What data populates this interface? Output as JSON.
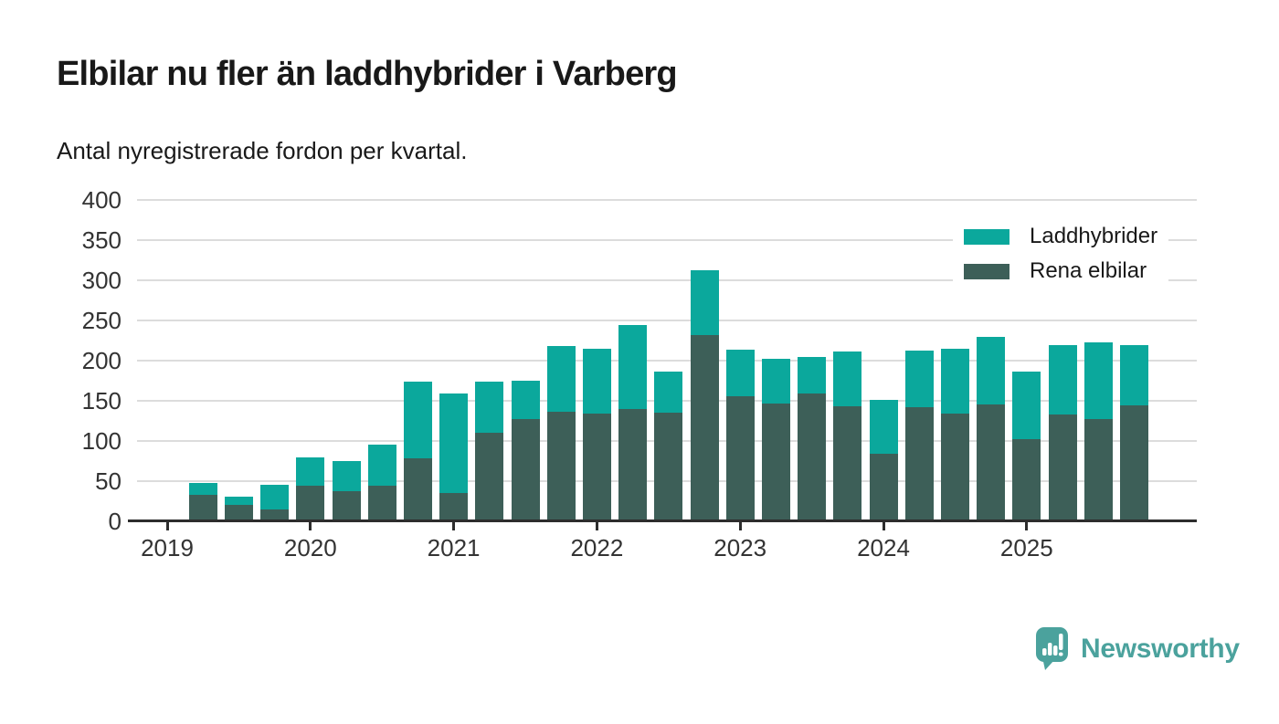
{
  "header": {
    "title": "Elbilar nu fler än laddhybrider i Varberg",
    "subtitle": "Antal nyregistrerade fordon per kvartal."
  },
  "legend": {
    "items": [
      {
        "label": "Laddhybrider",
        "color": "#0ba89c"
      },
      {
        "label": "Rena elbilar",
        "color": "#3d5f58"
      }
    ]
  },
  "footer": {
    "brand": "Newsworthy",
    "brand_color": "#4ba29d",
    "logo_icon": "newsworthy-speech-bubble-bar-chart-icon"
  },
  "colors": {
    "laddhybrider": "#0ba89c",
    "rena_elbilar": "#3d5f58",
    "grid": "#dcdcdc",
    "axis": "#2d2d2d",
    "title_text": "#191919",
    "tick_text": "#333333"
  },
  "chart_data": {
    "type": "bar",
    "stacked": true,
    "title": "Elbilar nu fler än laddhybrider i Varberg",
    "subtitle": "Antal nyregistrerade fordon per kvartal.",
    "x_unit": "quarter",
    "categories": [
      "2019 Q2",
      "2019 Q3",
      "2019 Q4",
      "2020 Q1",
      "2020 Q2",
      "2020 Q3",
      "2020 Q4",
      "2021 Q1",
      "2021 Q2",
      "2021 Q3",
      "2021 Q4",
      "2022 Q1",
      "2022 Q2",
      "2022 Q3",
      "2022 Q4",
      "2023 Q1",
      "2023 Q2",
      "2023 Q3",
      "2023 Q4",
      "2024 Q1",
      "2024 Q2",
      "2024 Q3",
      "2024 Q4",
      "2025 Q1",
      "2025 Q2",
      "2025 Q3",
      "2025 Q4"
    ],
    "series": [
      {
        "name": "Rena elbilar",
        "color": "#3d5f58",
        "values": [
          33,
          20,
          15,
          44,
          37,
          44,
          78,
          35,
          110,
          127,
          136,
          134,
          140,
          135,
          232,
          156,
          147,
          159,
          143,
          84,
          142,
          134,
          146,
          102,
          133,
          127,
          144
        ]
      },
      {
        "name": "Laddhybrider",
        "color": "#0ba89c",
        "values": [
          15,
          11,
          31,
          35,
          38,
          52,
          96,
          124,
          64,
          48,
          82,
          81,
          104,
          51,
          81,
          58,
          55,
          46,
          68,
          67,
          70,
          81,
          84,
          84,
          86,
          96,
          75
        ]
      }
    ],
    "totals": [
      48,
      31,
      46,
      79,
      75,
      96,
      174,
      159,
      174,
      175,
      218,
      215,
      244,
      186,
      313,
      214,
      202,
      205,
      211,
      151,
      212,
      215,
      230,
      186,
      219,
      223,
      219
    ],
    "y_ticks": [
      0,
      50,
      100,
      150,
      200,
      250,
      300,
      350,
      400
    ],
    "ylim": [
      0,
      400
    ],
    "x_year_ticks": [
      "2019",
      "2020",
      "2021",
      "2022",
      "2023",
      "2024",
      "2025"
    ],
    "grid": "horizontal",
    "legend_position": "top-right"
  }
}
